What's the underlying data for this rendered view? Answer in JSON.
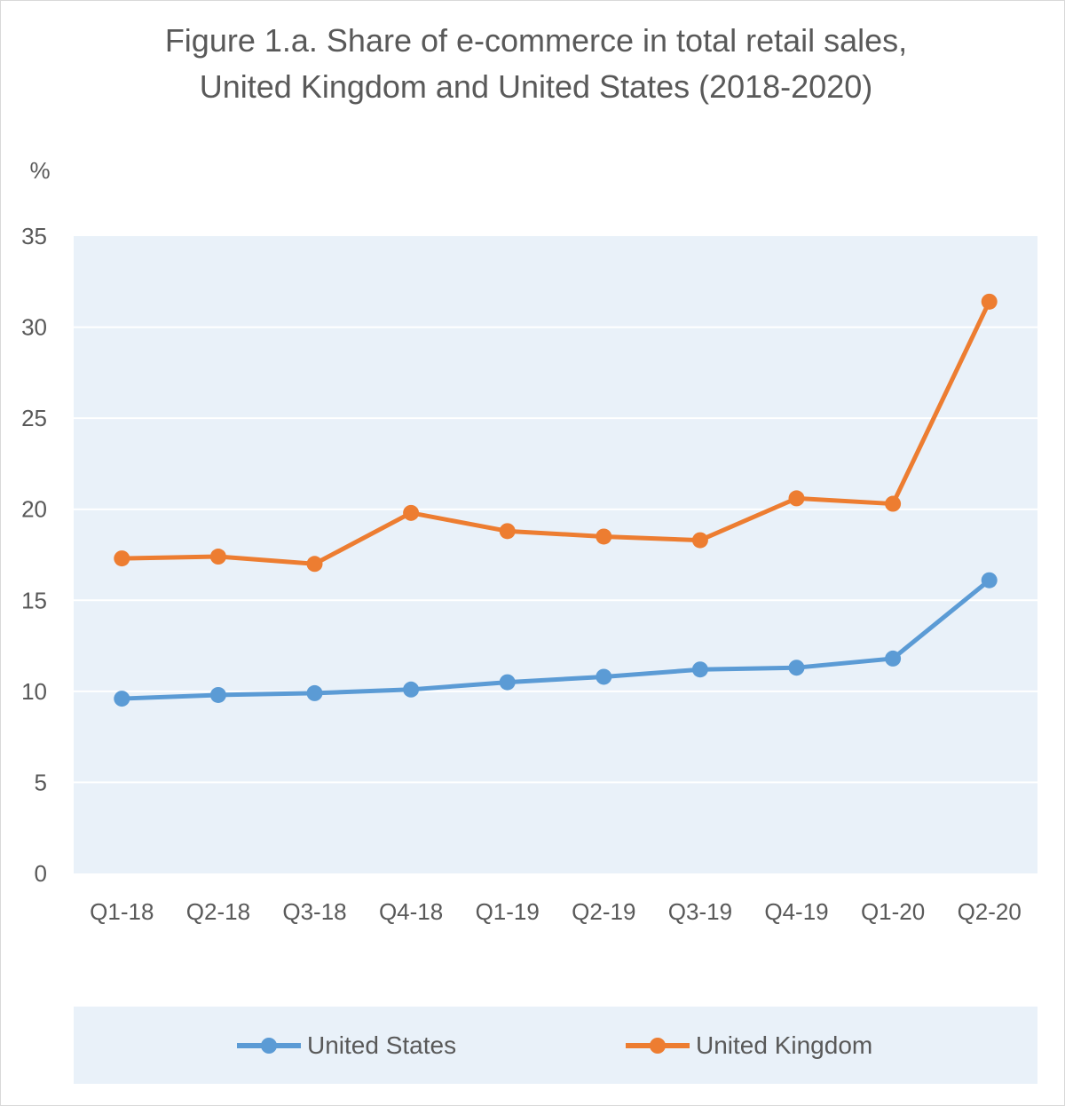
{
  "chart_data": {
    "type": "line",
    "title": "Figure 1.a. Share of e-commerce in total retail sales,",
    "subtitle": "United Kingdom and United States  (2018-2020)",
    "ylabel": "%",
    "xlabel": "",
    "ylim": [
      0,
      35
    ],
    "yticks": [
      "0",
      "5",
      "10",
      "15",
      "20",
      "25",
      "30",
      "35"
    ],
    "categories": [
      "Q1-18",
      "Q2-18",
      "Q3-18",
      "Q4-18",
      "Q1-19",
      "Q2-19",
      "Q3-19",
      "Q4-19",
      "Q1-20",
      "Q2-20"
    ],
    "series": [
      {
        "name": "United States",
        "color": "#5b9bd5",
        "values": [
          9.6,
          9.8,
          9.9,
          10.1,
          10.5,
          10.8,
          11.2,
          11.3,
          11.8,
          16.1
        ]
      },
      {
        "name": "United Kingdom",
        "color": "#ed7d31",
        "values": [
          17.3,
          17.4,
          17.0,
          19.8,
          18.8,
          18.5,
          18.3,
          20.6,
          20.3,
          31.4
        ]
      }
    ],
    "grid": true,
    "legend_position": "bottom",
    "plot_background": "#e9f1f9",
    "gridline_color": "#ffffff"
  }
}
